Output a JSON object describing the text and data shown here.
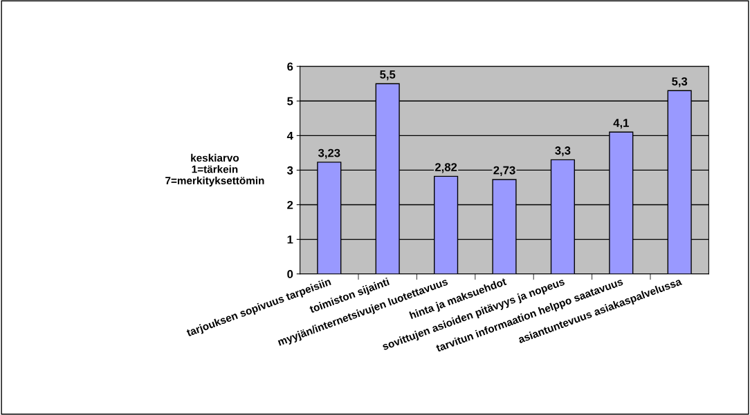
{
  "chart_data": {
    "type": "bar",
    "ylabel": "keskiarvo\n1=tärkein\n7=merkityksettömin",
    "categories": [
      "tarjouksen sopivuus tarpeisiin",
      "toimiston sijainti",
      "myyjän/internetsivujen luotettavuus",
      "hinta ja maksuehdot",
      "sovittujen asioiden pitävyys ja nopeus",
      "tarvitun informaation helppo saatavuus",
      "asiantuntevuus asiakaspalvelussa"
    ],
    "values": [
      3.23,
      5.5,
      2.82,
      2.73,
      3.3,
      4.1,
      5.3
    ],
    "value_labels": [
      "3,23",
      "5,5",
      "2,82",
      "2,73",
      "3,3",
      "4,1",
      "5,3"
    ],
    "color": "#9999ff",
    "ylim": [
      0,
      6
    ],
    "yticks": [
      0,
      1,
      2,
      3,
      4,
      5,
      6
    ],
    "grid": "y",
    "legend": false
  }
}
